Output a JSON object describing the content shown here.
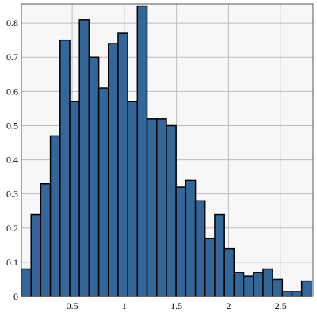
{
  "chart_data": {
    "type": "histogram",
    "bins": [
      0.013,
      0.106,
      0.198,
      0.291,
      0.384,
      0.477,
      0.569,
      0.662,
      0.755,
      0.847,
      0.94,
      1.033,
      1.125,
      1.218,
      1.311,
      1.404,
      1.496,
      1.589,
      1.682,
      1.774,
      1.867,
      1.96,
      2.052,
      2.145,
      2.238,
      2.331,
      2.423,
      2.516,
      2.609,
      2.701,
      2.794
    ],
    "values": [
      0.08,
      0.24,
      0.33,
      0.47,
      0.75,
      0.57,
      0.81,
      0.7,
      0.61,
      0.74,
      0.77,
      0.57,
      0.85,
      0.52,
      0.52,
      0.5,
      0.32,
      0.34,
      0.28,
      0.17,
      0.24,
      0.14,
      0.07,
      0.06,
      0.07,
      0.08,
      0.05,
      0.014,
      0.014,
      0.045
    ],
    "color": "#336699",
    "xlim": [
      0.013,
      2.81
    ],
    "ylim": [
      0,
      0.856
    ],
    "xticks": [
      0.5,
      1,
      1.5,
      2,
      2.5
    ],
    "yticks": [
      0,
      0.1,
      0.2,
      0.3,
      0.4,
      0.5,
      0.6,
      0.7,
      0.8
    ],
    "grid": true
  }
}
